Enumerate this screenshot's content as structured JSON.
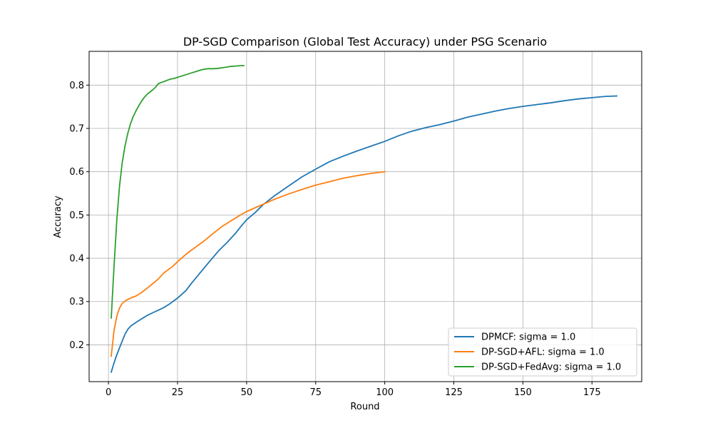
{
  "chart_data": {
    "type": "line",
    "title": "DP-SGD Comparison (Global Test Accuracy) under PSG Scenario",
    "xlabel": "Round",
    "ylabel": "Accuracy",
    "xlim": [
      -7,
      193
    ],
    "ylim": [
      0.115,
      0.878
    ],
    "xticks": [
      0,
      25,
      50,
      75,
      100,
      125,
      150,
      175
    ],
    "yticks": [
      0.2,
      0.3,
      0.4,
      0.5,
      0.6,
      0.7,
      0.8
    ],
    "grid": true,
    "legend_position": "lower-right",
    "series": [
      {
        "name": "DPMCF: sigma = 1.0",
        "color": "#1f77b4",
        "x": [
          1,
          2,
          3,
          4,
          5,
          6,
          7,
          8,
          10,
          12,
          14,
          16,
          18,
          20,
          22,
          25,
          28,
          30,
          33,
          36,
          40,
          43,
          46,
          48,
          50,
          53,
          56,
          60,
          65,
          70,
          75,
          80,
          85,
          90,
          95,
          100,
          105,
          110,
          115,
          120,
          125,
          130,
          135,
          140,
          145,
          150,
          155,
          160,
          165,
          170,
          175,
          180,
          184
        ],
        "y": [
          0.137,
          0.158,
          0.177,
          0.193,
          0.209,
          0.225,
          0.236,
          0.243,
          0.252,
          0.26,
          0.268,
          0.274,
          0.28,
          0.286,
          0.294,
          0.308,
          0.325,
          0.342,
          0.365,
          0.388,
          0.418,
          0.437,
          0.458,
          0.474,
          0.489,
          0.505,
          0.524,
          0.544,
          0.566,
          0.588,
          0.606,
          0.623,
          0.636,
          0.648,
          0.659,
          0.67,
          0.683,
          0.694,
          0.702,
          0.709,
          0.717,
          0.726,
          0.733,
          0.74,
          0.746,
          0.751,
          0.755,
          0.759,
          0.764,
          0.768,
          0.771,
          0.774,
          0.775
        ]
      },
      {
        "name": "DP-SGD+AFL: sigma = 1.0",
        "color": "#ff7f0e",
        "x": [
          1,
          2,
          3,
          4,
          5,
          6,
          7,
          8,
          10,
          12,
          15,
          18,
          20,
          23,
          26,
          29,
          32,
          35,
          38,
          41,
          44,
          47,
          50,
          55,
          60,
          65,
          70,
          75,
          80,
          85,
          90,
          95,
          100
        ],
        "y": [
          0.174,
          0.233,
          0.266,
          0.285,
          0.296,
          0.301,
          0.305,
          0.308,
          0.313,
          0.321,
          0.336,
          0.352,
          0.366,
          0.38,
          0.398,
          0.414,
          0.428,
          0.442,
          0.458,
          0.473,
          0.485,
          0.497,
          0.508,
          0.522,
          0.536,
          0.548,
          0.559,
          0.569,
          0.577,
          0.585,
          0.591,
          0.596,
          0.6
        ]
      },
      {
        "name": "DP-SGD+FedAvg: sigma = 1.0",
        "color": "#2ca02c",
        "x": [
          1,
          2,
          3,
          4,
          5,
          6,
          7,
          8,
          9,
          10,
          11,
          12,
          13,
          14,
          15,
          16,
          17,
          18,
          19,
          20,
          22,
          24,
          26,
          28,
          30,
          32,
          34,
          36,
          38,
          40,
          42,
          44,
          46,
          48,
          49
        ],
        "y": [
          0.262,
          0.38,
          0.488,
          0.566,
          0.622,
          0.66,
          0.689,
          0.711,
          0.728,
          0.741,
          0.753,
          0.763,
          0.772,
          0.779,
          0.784,
          0.789,
          0.795,
          0.803,
          0.806,
          0.808,
          0.813,
          0.816,
          0.82,
          0.824,
          0.828,
          0.832,
          0.836,
          0.838,
          0.838,
          0.839,
          0.841,
          0.843,
          0.844,
          0.845,
          0.845
        ]
      }
    ]
  }
}
